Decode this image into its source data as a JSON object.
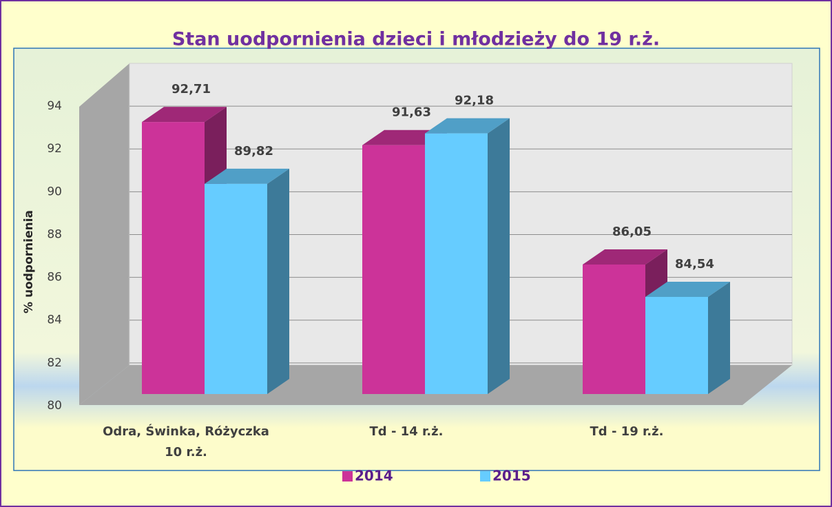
{
  "chart_data": {
    "type": "bar3d",
    "title": "Stan uodpornienia dzieci i młodzieży do 19 r.ż.",
    "y_label": "% uodpornienia",
    "categories": [
      "Odra, Świnka, Różyczka 10 r.ż.",
      "Td - 14 r.ż.",
      "Td - 19 r.ż."
    ],
    "series": [
      {
        "name": "2014",
        "color": "#cc3399",
        "values": [
          92.71,
          91.63,
          86.05
        ],
        "value_labels": [
          "92,71",
          "91,63",
          "86,05"
        ]
      },
      {
        "name": "2015",
        "color": "#66ccff",
        "values": [
          89.82,
          92.18,
          84.54
        ],
        "value_labels": [
          "89,82",
          "92,18",
          "84,54"
        ]
      }
    ],
    "ylim": [
      80,
      95
    ],
    "yticks": [
      80,
      82,
      84,
      86,
      88,
      90,
      92,
      94
    ],
    "grid": true,
    "legend": "bottom"
  }
}
